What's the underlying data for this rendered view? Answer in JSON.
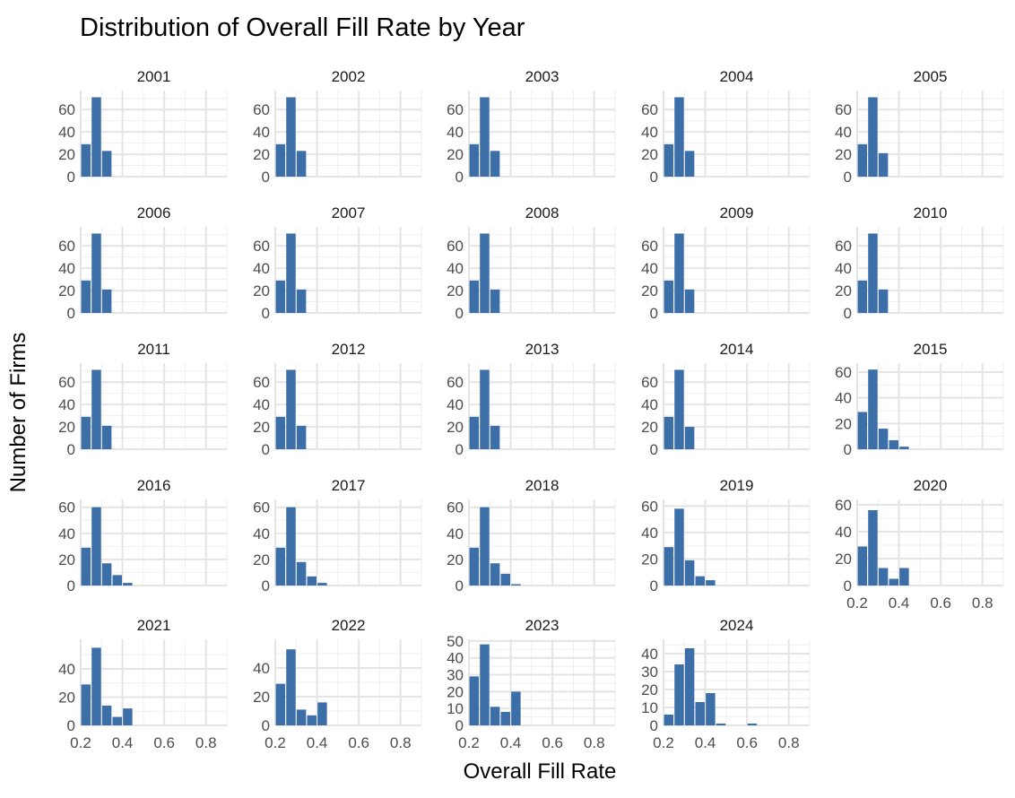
{
  "chart_data": {
    "type": "bar",
    "title": "Distribution of Overall Fill Rate by Year",
    "xlabel": "Overall Fill Rate",
    "ylabel": "Number of Firms",
    "bar_color": "#3C6EA8",
    "grid": true,
    "xlim": [
      0.2,
      0.9
    ],
    "x_ticks": [
      0.2,
      0.4,
      0.6,
      0.8
    ],
    "x_tick_labels": [
      "0.2",
      "0.4",
      "0.6",
      "0.8"
    ],
    "bins": [
      0.225,
      0.275,
      0.325,
      0.375,
      0.425,
      0.475,
      0.525,
      0.575,
      0.625,
      0.675,
      0.725,
      0.775,
      0.825,
      0.875
    ],
    "facets": [
      {
        "year": "2001",
        "ylim": [
          0,
          77
        ],
        "y_ticks": [
          0,
          20,
          40,
          60
        ],
        "values": [
          29,
          71,
          23,
          0,
          0,
          0,
          0,
          0,
          0,
          0,
          0,
          0,
          0,
          0
        ]
      },
      {
        "year": "2002",
        "ylim": [
          0,
          77
        ],
        "y_ticks": [
          0,
          20,
          40,
          60
        ],
        "values": [
          29,
          71,
          23,
          0,
          0,
          0,
          0,
          0,
          0,
          0,
          0,
          0,
          0,
          0
        ]
      },
      {
        "year": "2003",
        "ylim": [
          0,
          77
        ],
        "y_ticks": [
          0,
          20,
          40,
          60
        ],
        "values": [
          29,
          71,
          23,
          0,
          0,
          0,
          0,
          0,
          0,
          0,
          0,
          0,
          0,
          0
        ]
      },
      {
        "year": "2004",
        "ylim": [
          0,
          77
        ],
        "y_ticks": [
          0,
          20,
          40,
          60
        ],
        "values": [
          29,
          71,
          23,
          0,
          0,
          0,
          0,
          0,
          0,
          0,
          0,
          0,
          0,
          0
        ]
      },
      {
        "year": "2005",
        "ylim": [
          0,
          77
        ],
        "y_ticks": [
          0,
          20,
          40,
          60
        ],
        "values": [
          29,
          71,
          21,
          0,
          0,
          0,
          0,
          0,
          0,
          0,
          0,
          0,
          0,
          0
        ]
      },
      {
        "year": "2006",
        "ylim": [
          0,
          77
        ],
        "y_ticks": [
          0,
          20,
          40,
          60
        ],
        "values": [
          29,
          71,
          21,
          0,
          0,
          0,
          0,
          0,
          0,
          0,
          0,
          0,
          0,
          0
        ]
      },
      {
        "year": "2007",
        "ylim": [
          0,
          77
        ],
        "y_ticks": [
          0,
          20,
          40,
          60
        ],
        "values": [
          29,
          71,
          21,
          0,
          0,
          0,
          0,
          0,
          0,
          0,
          0,
          0,
          0,
          0
        ]
      },
      {
        "year": "2008",
        "ylim": [
          0,
          77
        ],
        "y_ticks": [
          0,
          20,
          40,
          60
        ],
        "values": [
          29,
          71,
          21,
          0,
          0,
          0,
          0,
          0,
          0,
          0,
          0,
          0,
          0,
          0
        ]
      },
      {
        "year": "2009",
        "ylim": [
          0,
          77
        ],
        "y_ticks": [
          0,
          20,
          40,
          60
        ],
        "values": [
          29,
          71,
          21,
          0,
          0,
          0,
          0,
          0,
          0,
          0,
          0,
          0,
          0,
          0
        ]
      },
      {
        "year": "2010",
        "ylim": [
          0,
          77
        ],
        "y_ticks": [
          0,
          20,
          40,
          60
        ],
        "values": [
          29,
          71,
          21,
          0,
          0,
          0,
          0,
          0,
          0,
          0,
          0,
          0,
          0,
          0
        ]
      },
      {
        "year": "2011",
        "ylim": [
          0,
          77
        ],
        "y_ticks": [
          0,
          20,
          40,
          60
        ],
        "values": [
          29,
          71,
          21,
          0,
          0,
          0,
          0,
          0,
          0,
          0,
          0,
          0,
          0,
          0
        ]
      },
      {
        "year": "2012",
        "ylim": [
          0,
          77
        ],
        "y_ticks": [
          0,
          20,
          40,
          60
        ],
        "values": [
          29,
          71,
          21,
          0,
          0,
          0,
          0,
          0,
          0,
          0,
          0,
          0,
          0,
          0
        ]
      },
      {
        "year": "2013",
        "ylim": [
          0,
          77
        ],
        "y_ticks": [
          0,
          20,
          40,
          60
        ],
        "values": [
          29,
          71,
          21,
          0,
          0,
          0,
          0,
          0,
          0,
          0,
          0,
          0,
          0,
          0
        ]
      },
      {
        "year": "2014",
        "ylim": [
          0,
          77
        ],
        "y_ticks": [
          0,
          20,
          40,
          60
        ],
        "values": [
          29,
          71,
          20,
          0,
          0,
          0,
          0,
          0,
          0,
          0,
          0,
          0,
          0,
          0
        ]
      },
      {
        "year": "2015",
        "ylim": [
          0,
          67
        ],
        "y_ticks": [
          0,
          20,
          40,
          60
        ],
        "values": [
          29,
          62,
          16,
          7,
          2,
          0,
          0,
          0,
          0,
          0,
          0,
          0,
          0,
          0
        ]
      },
      {
        "year": "2016",
        "ylim": [
          0,
          66
        ],
        "y_ticks": [
          0,
          20,
          40,
          60
        ],
        "values": [
          29,
          60,
          17,
          8,
          2,
          0,
          0,
          0,
          0,
          0,
          0,
          0,
          0,
          0
        ]
      },
      {
        "year": "2017",
        "ylim": [
          0,
          66
        ],
        "y_ticks": [
          0,
          20,
          40,
          60
        ],
        "values": [
          29,
          60,
          18,
          7,
          2,
          0,
          0,
          0,
          0,
          0,
          0,
          0,
          0,
          0
        ]
      },
      {
        "year": "2018",
        "ylim": [
          0,
          66
        ],
        "y_ticks": [
          0,
          20,
          40,
          60
        ],
        "values": [
          29,
          60,
          17,
          9,
          1,
          0,
          0,
          0,
          0,
          0,
          0,
          0,
          0,
          0
        ]
      },
      {
        "year": "2019",
        "ylim": [
          0,
          65
        ],
        "y_ticks": [
          0,
          20,
          40,
          60
        ],
        "values": [
          29,
          58,
          19,
          7,
          4,
          0,
          0,
          0,
          0,
          0,
          0,
          0,
          0,
          0
        ]
      },
      {
        "year": "2020",
        "ylim": [
          0,
          64
        ],
        "y_ticks": [
          0,
          20,
          40,
          60
        ],
        "values": [
          29,
          56,
          13,
          5,
          13,
          0,
          0,
          0,
          0,
          0,
          0,
          0,
          0,
          0
        ]
      },
      {
        "year": "2021",
        "ylim": [
          0,
          61
        ],
        "y_ticks": [
          0,
          20,
          40
        ],
        "values": [
          29,
          55,
          14,
          6,
          12,
          0,
          0,
          0,
          0,
          0,
          0,
          0,
          0,
          0
        ]
      },
      {
        "year": "2022",
        "ylim": [
          0,
          60
        ],
        "y_ticks": [
          0,
          20,
          40
        ],
        "values": [
          29,
          53,
          11,
          7,
          16,
          0,
          0,
          0,
          0,
          0,
          0,
          0,
          0,
          0
        ]
      },
      {
        "year": "2023",
        "ylim": [
          0,
          51
        ],
        "y_ticks": [
          0,
          10,
          20,
          30,
          40,
          50
        ],
        "values": [
          29,
          48,
          11,
          8,
          20,
          0,
          0,
          0,
          0,
          0,
          0,
          0,
          0,
          0
        ]
      },
      {
        "year": "2024",
        "ylim": [
          0,
          48
        ],
        "y_ticks": [
          0,
          10,
          20,
          30,
          40
        ],
        "values": [
          6,
          34,
          43,
          13,
          18,
          1,
          0,
          0,
          1,
          0,
          0,
          0,
          0,
          0
        ]
      }
    ]
  }
}
